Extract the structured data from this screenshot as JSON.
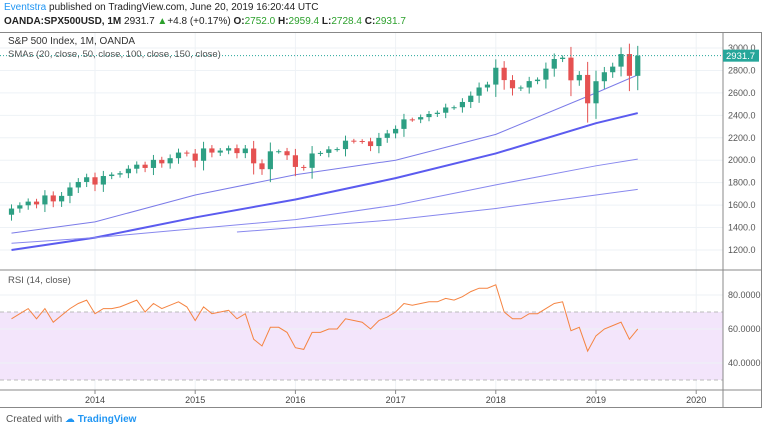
{
  "header": {
    "author": "Eventstra",
    "published": "published on TradingView.com, June 20, 2019 16:20:44 UTC",
    "symbol": "OANDA:SPX500USD, 1M",
    "last": "2931.7",
    "change": "+4.8 (+0.17%)",
    "o_label": "O:",
    "o": "2752.0",
    "h_label": "H:",
    "h": "2959.4",
    "l_label": "L:",
    "l": "2728.4",
    "c_label": "C:",
    "c": "2931.7"
  },
  "footer": {
    "prefix": "Created with",
    "brand": "TradingView"
  },
  "chart_data": [
    {
      "type": "candlestick",
      "title": "S&P 500 Index, 1M, OANDA",
      "subtitle": "SMAs (20, close, 50, close, 100, close, 150, close)",
      "start": "2013-03",
      "interval": "1M",
      "ylim": [
        1100,
        3050
      ],
      "yticks": [
        "3000.0",
        "2800.0",
        "2600.0",
        "2400.0",
        "2200.0",
        "2000.0",
        "1800.0",
        "1600.0",
        "1400.0",
        "1200.0"
      ],
      "last_price_label": "2931.7",
      "closes": [
        1569,
        1598,
        1631,
        1606,
        1686,
        1633,
        1682,
        1757,
        1806,
        1848,
        1783,
        1859,
        1872,
        1884,
        1924,
        1960,
        1931,
        2003,
        1972,
        2018,
        2068,
        2059,
        1995,
        2105,
        2068,
        2086,
        2107,
        2063,
        2104,
        1972,
        1920,
        2079,
        2080,
        2044,
        1940,
        1932,
        2060,
        2065,
        2097,
        2099,
        2174,
        2171,
        2168,
        2126,
        2199,
        2239,
        2279,
        2364,
        2363,
        2384,
        2412,
        2423,
        2470,
        2472,
        2519,
        2575,
        2648,
        2674,
        2824,
        2714,
        2641,
        2648,
        2705,
        2718,
        2816,
        2902,
        2914,
        2712,
        2760,
        2507,
        2704,
        2784,
        2834,
        2946,
        2752,
        2932
      ],
      "first_open": 1514,
      "sma": [
        {
          "name": "SMA 20",
          "color": "#7b7be8",
          "points": [
            [
              0,
              1350
            ],
            [
              10,
              1450
            ],
            [
              22,
              1690
            ],
            [
              34,
              1870
            ],
            [
              46,
              2000
            ],
            [
              58,
              2230
            ],
            [
              70,
              2600
            ],
            [
              75,
              2760
            ]
          ]
        },
        {
          "name": "SMA 50",
          "color": "#5b5bef",
          "points": [
            [
              0,
              1200
            ],
            [
              10,
              1310
            ],
            [
              22,
              1490
            ],
            [
              34,
              1650
            ],
            [
              46,
              1840
            ],
            [
              58,
              2060
            ],
            [
              70,
              2330
            ],
            [
              75,
              2420
            ]
          ]
        },
        {
          "name": "SMA 100",
          "color": "#8888ee",
          "points": [
            [
              0,
              1260
            ],
            [
              10,
              1310
            ],
            [
              22,
              1390
            ],
            [
              34,
              1470
            ],
            [
              46,
              1600
            ],
            [
              58,
              1780
            ],
            [
              70,
              1950
            ],
            [
              75,
              2010
            ]
          ]
        },
        {
          "name": "SMA 150",
          "color": "#8888ee",
          "points": [
            [
              27,
              1360
            ],
            [
              34,
              1400
            ],
            [
              46,
              1470
            ],
            [
              58,
              1570
            ],
            [
              70,
              1690
            ],
            [
              75,
              1740
            ]
          ]
        }
      ]
    },
    {
      "type": "line",
      "title": "RSI (14, close)",
      "color": "#f58442",
      "ylim": [
        25,
        95
      ],
      "band": [
        30,
        70
      ],
      "yticks": [
        "80.0000",
        "60.0000",
        "40.0000"
      ],
      "values": [
        66,
        69,
        72,
        66,
        72,
        64,
        68,
        72,
        75,
        77,
        69,
        72,
        72,
        73,
        75,
        77,
        70,
        75,
        72,
        74,
        76,
        73,
        65,
        73,
        69,
        70,
        71,
        66,
        69,
        54,
        50,
        61,
        61,
        58,
        49,
        48,
        58,
        58,
        60,
        60,
        66,
        65,
        64,
        60,
        65,
        67,
        70,
        75,
        74,
        75,
        76,
        76,
        78,
        77,
        79,
        82,
        84,
        84,
        86,
        70,
        66,
        66,
        69,
        69,
        72,
        75,
        76,
        59,
        61,
        47,
        56,
        60,
        62,
        64,
        54,
        60
      ]
    },
    {
      "type": "axis",
      "xticks": [
        "2014",
        "2015",
        "2016",
        "2017",
        "2018",
        "2019",
        "2020"
      ]
    }
  ]
}
